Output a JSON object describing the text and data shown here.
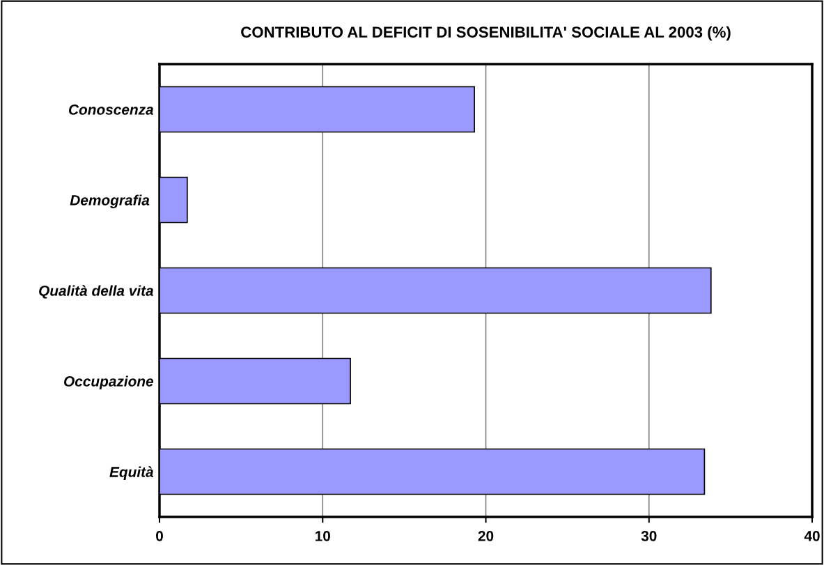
{
  "chart_data": {
    "type": "bar",
    "orientation": "horizontal",
    "title": "CONTRIBUTO AL DEFICIT DI SOSENIBILITA' SOCIALE AL 2003 (%)",
    "categories": [
      "Conoscenza",
      "Demografia ",
      "Qualità della vita",
      "Occupazione",
      "Equità"
    ],
    "values": [
      19.3,
      1.7,
      33.8,
      11.7,
      33.4
    ],
    "color": "#9999ff",
    "xlim": [
      0,
      40
    ],
    "xticks": [
      0,
      10,
      20,
      30,
      40
    ],
    "grid": "x"
  }
}
